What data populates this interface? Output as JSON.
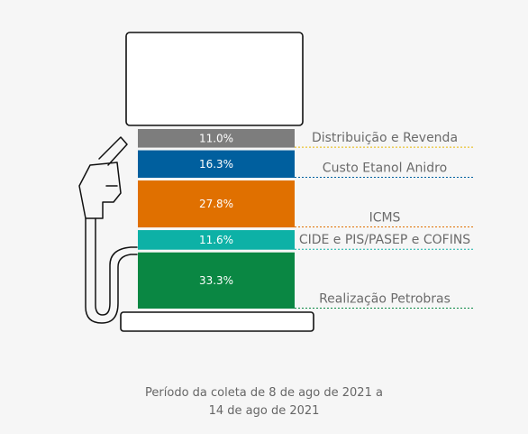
{
  "chart_data": {
    "type": "bar",
    "stacked": true,
    "orientation": "vertical",
    "unit": "%",
    "segments": [
      {
        "label": "Realização Petrobras",
        "value": 33.3,
        "value_label": "33.3%",
        "color": "#0a8743",
        "line_color": "#0a8743"
      },
      {
        "label": "CIDE e PIS/PASEP e COFINS",
        "value": 11.6,
        "value_label": "11.6%",
        "color": "#0db1a6",
        "line_color": "#0db1a6"
      },
      {
        "label": "ICMS",
        "value": 27.8,
        "value_label": "27.8%",
        "color": "#e07000",
        "line_color": "#e07000"
      },
      {
        "label": "Custo Etanol Anidro",
        "value": 16.3,
        "value_label": "16.3%",
        "color": "#005f9e",
        "line_color": "#005f9e"
      },
      {
        "label": "Distribuição e Revenda",
        "value": 11.0,
        "value_label": "11.0%",
        "color": "#7d7d7d",
        "line_color": "#e8b600"
      }
    ],
    "legend_position": "right",
    "label_color": "#6b6b6b"
  },
  "footnote": {
    "line1": "Período da coleta de 8 de ago de 2021 a",
    "line2": "14 de ago de 2021"
  },
  "colors": {
    "background": "#f6f6f6",
    "outline": "#111111",
    "value_text": "#ffffff"
  }
}
